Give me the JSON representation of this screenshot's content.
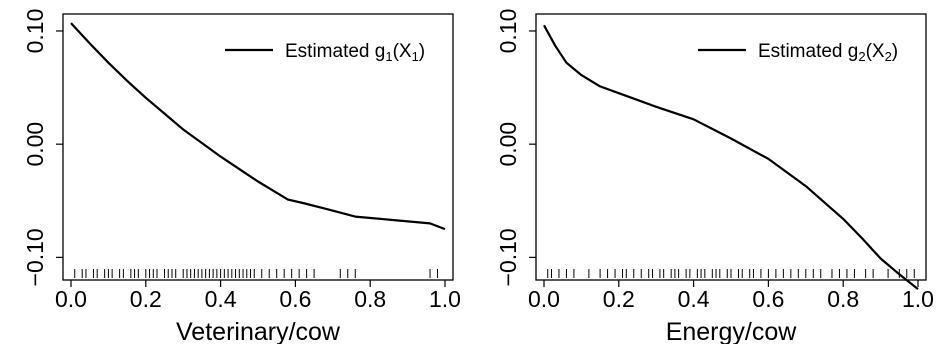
{
  "chart_data": [
    {
      "type": "line",
      "legend": {
        "label": "Estimated g",
        "sub": "1",
        "arg": "X",
        "argsub": "1",
        "placement": "top-right"
      },
      "xlabel": "Veterinary/cow",
      "ylabel": "",
      "xlim": [
        0,
        1
      ],
      "ylim": [
        -0.12,
        0.115
      ],
      "xticks": [
        "0.0",
        "0.2",
        "0.4",
        "0.6",
        "0.8",
        "1.0"
      ],
      "yticks": [
        "-0.10",
        "0.00",
        "0.10"
      ],
      "grid": false,
      "series": [
        {
          "x": [
            0.0,
            0.05,
            0.1,
            0.15,
            0.2,
            0.25,
            0.3,
            0.35,
            0.4,
            0.45,
            0.5,
            0.55,
            0.58,
            0.62,
            0.68,
            0.76,
            0.86,
            0.96,
            1.0
          ],
          "y": [
            0.107,
            0.089,
            0.072,
            0.056,
            0.041,
            0.027,
            0.013,
            0.001,
            -0.011,
            -0.022,
            -0.033,
            -0.043,
            -0.049,
            -0.052,
            -0.057,
            -0.064,
            -0.067,
            -0.07,
            -0.075
          ]
        }
      ],
      "rug": [
        0.01,
        0.03,
        0.04,
        0.06,
        0.07,
        0.09,
        0.1,
        0.11,
        0.13,
        0.14,
        0.16,
        0.17,
        0.18,
        0.2,
        0.21,
        0.22,
        0.23,
        0.25,
        0.26,
        0.27,
        0.28,
        0.3,
        0.31,
        0.32,
        0.33,
        0.34,
        0.35,
        0.36,
        0.37,
        0.38,
        0.39,
        0.4,
        0.41,
        0.42,
        0.43,
        0.44,
        0.45,
        0.46,
        0.47,
        0.48,
        0.49,
        0.51,
        0.53,
        0.55,
        0.57,
        0.59,
        0.61,
        0.63,
        0.65,
        0.72,
        0.74,
        0.76,
        0.96,
        0.98
      ]
    },
    {
      "type": "line",
      "legend": {
        "label": "Estimated g",
        "sub": "2",
        "arg": "X",
        "argsub": "2",
        "placement": "top-right"
      },
      "xlabel": "Energy/cow",
      "ylabel": "",
      "xlim": [
        0,
        1
      ],
      "ylim": [
        -0.12,
        0.115
      ],
      "xticks": [
        "0.0",
        "0.2",
        "0.4",
        "0.6",
        "0.8",
        "1.0"
      ],
      "yticks": [
        "-0.10",
        "0.00",
        "0.10"
      ],
      "grid": false,
      "series": [
        {
          "x": [
            0.0,
            0.03,
            0.06,
            0.1,
            0.15,
            0.2,
            0.3,
            0.4,
            0.5,
            0.6,
            0.7,
            0.8,
            0.85,
            0.9,
            0.95,
            1.0
          ],
          "y": [
            0.105,
            0.087,
            0.072,
            0.061,
            0.051,
            0.045,
            0.033,
            0.022,
            0.005,
            -0.013,
            -0.037,
            -0.066,
            -0.083,
            -0.101,
            -0.115,
            -0.128
          ]
        }
      ],
      "rug": [
        0.01,
        0.02,
        0.04,
        0.06,
        0.08,
        0.12,
        0.15,
        0.17,
        0.19,
        0.21,
        0.22,
        0.24,
        0.26,
        0.28,
        0.29,
        0.31,
        0.32,
        0.34,
        0.35,
        0.36,
        0.38,
        0.39,
        0.41,
        0.42,
        0.43,
        0.45,
        0.46,
        0.47,
        0.49,
        0.5,
        0.52,
        0.53,
        0.55,
        0.56,
        0.58,
        0.6,
        0.62,
        0.64,
        0.66,
        0.68,
        0.7,
        0.72,
        0.74,
        0.77,
        0.79,
        0.81,
        0.83,
        0.86,
        0.88,
        0.92,
        0.95,
        0.97,
        0.99
      ]
    }
  ]
}
